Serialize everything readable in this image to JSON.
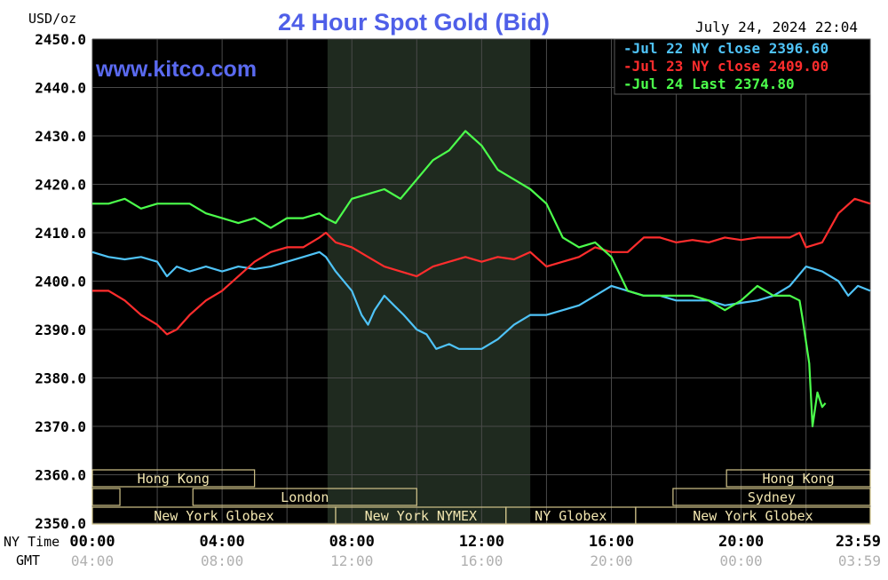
{
  "chart_data": {
    "type": "line",
    "title": "24 Hour Spot Gold (Bid)",
    "watermark": "www.kitco.com",
    "timestamp": "July 24, 2024 22:04",
    "ylabel": "USD/oz",
    "ylim": [
      2350,
      2450
    ],
    "grid": true,
    "legend_position": "top-right",
    "y_ticks": [
      "2450.0",
      "2440.0",
      "2430.0",
      "2420.0",
      "2410.0",
      "2400.0",
      "2390.0",
      "2380.0",
      "2370.0",
      "2360.0",
      "2350.0"
    ],
    "x_axis_label_ny": "NY Time",
    "x_axis_label_gmt": "GMT",
    "x_ticks_ny": [
      "00:00",
      "04:00",
      "08:00",
      "12:00",
      "16:00",
      "20:00",
      "23:59"
    ],
    "x_ticks_gmt": [
      "04:00",
      "08:00",
      "12:00",
      "16:00",
      "20:00",
      "00:00",
      "03:59"
    ],
    "highlight_band_hours": [
      7.25,
      13.5
    ],
    "series": [
      {
        "name": "Jul 22 NY close 2396.60",
        "color": "#4fc3f7",
        "points": [
          [
            0,
            2406
          ],
          [
            0.5,
            2405
          ],
          [
            1,
            2404.5
          ],
          [
            1.5,
            2405
          ],
          [
            2,
            2404
          ],
          [
            2.3,
            2401
          ],
          [
            2.6,
            2403
          ],
          [
            3,
            2402
          ],
          [
            3.5,
            2403
          ],
          [
            4,
            2402
          ],
          [
            4.5,
            2403
          ],
          [
            5,
            2402.5
          ],
          [
            5.5,
            2403
          ],
          [
            6,
            2404
          ],
          [
            6.5,
            2405
          ],
          [
            7,
            2406
          ],
          [
            7.2,
            2405
          ],
          [
            7.5,
            2402
          ],
          [
            8,
            2398
          ],
          [
            8.3,
            2393
          ],
          [
            8.5,
            2391
          ],
          [
            8.7,
            2394
          ],
          [
            9,
            2397
          ],
          [
            9.3,
            2395
          ],
          [
            9.6,
            2393
          ],
          [
            10,
            2390
          ],
          [
            10.3,
            2389
          ],
          [
            10.6,
            2386
          ],
          [
            11,
            2387
          ],
          [
            11.3,
            2386
          ],
          [
            11.7,
            2386
          ],
          [
            12,
            2386
          ],
          [
            12.5,
            2388
          ],
          [
            13,
            2391
          ],
          [
            13.5,
            2393
          ],
          [
            14,
            2393
          ],
          [
            14.5,
            2394
          ],
          [
            15,
            2395
          ],
          [
            15.5,
            2397
          ],
          [
            16,
            2399
          ],
          [
            16.5,
            2398
          ],
          [
            17,
            2397
          ],
          [
            17.5,
            2397
          ],
          [
            18,
            2396
          ],
          [
            18.5,
            2396
          ],
          [
            19,
            2396
          ],
          [
            19.5,
            2395
          ],
          [
            20,
            2395.5
          ],
          [
            20.5,
            2396
          ],
          [
            21,
            2397
          ],
          [
            21.5,
            2399
          ],
          [
            22,
            2403
          ],
          [
            22.5,
            2402
          ],
          [
            23,
            2400
          ],
          [
            23.3,
            2397
          ],
          [
            23.6,
            2399
          ],
          [
            23.98,
            2398
          ]
        ]
      },
      {
        "name": "Jul 23 NY close 2409.00",
        "color": "#ff2d2d",
        "points": [
          [
            0,
            2398
          ],
          [
            0.5,
            2398
          ],
          [
            1,
            2396
          ],
          [
            1.5,
            2393
          ],
          [
            2,
            2391
          ],
          [
            2.3,
            2389
          ],
          [
            2.6,
            2390
          ],
          [
            3,
            2393
          ],
          [
            3.5,
            2396
          ],
          [
            4,
            2398
          ],
          [
            4.5,
            2401
          ],
          [
            5,
            2404
          ],
          [
            5.5,
            2406
          ],
          [
            6,
            2407
          ],
          [
            6.5,
            2407
          ],
          [
            7,
            2409
          ],
          [
            7.2,
            2410
          ],
          [
            7.5,
            2408
          ],
          [
            8,
            2407
          ],
          [
            8.5,
            2405
          ],
          [
            9,
            2403
          ],
          [
            9.5,
            2402
          ],
          [
            10,
            2401
          ],
          [
            10.5,
            2403
          ],
          [
            11,
            2404
          ],
          [
            11.5,
            2405
          ],
          [
            12,
            2404
          ],
          [
            12.5,
            2405
          ],
          [
            13,
            2404.5
          ],
          [
            13.5,
            2406
          ],
          [
            14,
            2403
          ],
          [
            14.5,
            2404
          ],
          [
            15,
            2405
          ],
          [
            15.5,
            2407
          ],
          [
            16,
            2406
          ],
          [
            16.5,
            2406
          ],
          [
            17,
            2409
          ],
          [
            17.5,
            2409
          ],
          [
            18,
            2408
          ],
          [
            18.5,
            2408.5
          ],
          [
            19,
            2408
          ],
          [
            19.5,
            2409
          ],
          [
            20,
            2408.5
          ],
          [
            20.5,
            2409
          ],
          [
            21,
            2409
          ],
          [
            21.5,
            2409
          ],
          [
            21.8,
            2410
          ],
          [
            22,
            2407
          ],
          [
            22.5,
            2408
          ],
          [
            23,
            2414
          ],
          [
            23.5,
            2417
          ],
          [
            23.98,
            2416
          ]
        ]
      },
      {
        "name": "Jul 24 Last 2374.80",
        "color": "#4cff4c",
        "points": [
          [
            0,
            2416
          ],
          [
            0.5,
            2416
          ],
          [
            1,
            2417
          ],
          [
            1.5,
            2415
          ],
          [
            2,
            2416
          ],
          [
            2.5,
            2416
          ],
          [
            3,
            2416
          ],
          [
            3.5,
            2414
          ],
          [
            4,
            2413
          ],
          [
            4.5,
            2412
          ],
          [
            5,
            2413
          ],
          [
            5.5,
            2411
          ],
          [
            6,
            2413
          ],
          [
            6.5,
            2413
          ],
          [
            7,
            2414
          ],
          [
            7.2,
            2413
          ],
          [
            7.5,
            2412
          ],
          [
            8,
            2417
          ],
          [
            8.5,
            2418
          ],
          [
            9,
            2419
          ],
          [
            9.5,
            2417
          ],
          [
            10,
            2421
          ],
          [
            10.5,
            2425
          ],
          [
            11,
            2427
          ],
          [
            11.5,
            2431
          ],
          [
            12,
            2428
          ],
          [
            12.5,
            2423
          ],
          [
            13,
            2421
          ],
          [
            13.5,
            2419
          ],
          [
            14,
            2416
          ],
          [
            14.5,
            2409
          ],
          [
            15,
            2407
          ],
          [
            15.5,
            2408
          ],
          [
            16,
            2405
          ],
          [
            16.5,
            2398
          ],
          [
            17,
            2397
          ],
          [
            17.5,
            2397
          ],
          [
            18,
            2397
          ],
          [
            18.5,
            2397
          ],
          [
            19,
            2396
          ],
          [
            19.5,
            2394
          ],
          [
            20,
            2396
          ],
          [
            20.5,
            2399
          ],
          [
            21,
            2397
          ],
          [
            21.5,
            2397
          ],
          [
            21.8,
            2396
          ],
          [
            21.9,
            2392
          ],
          [
            22.1,
            2383
          ],
          [
            22.2,
            2370
          ],
          [
            22.35,
            2377
          ],
          [
            22.5,
            2374
          ],
          [
            22.6,
            2374.8
          ]
        ]
      }
    ],
    "sessions": [
      {
        "label": "Hong Kong",
        "start": 0,
        "end": 5.0,
        "row": 0
      },
      {
        "label": "",
        "start": 0,
        "end": 0.85,
        "row": 1
      },
      {
        "label": "London",
        "start": 3.1,
        "end": 10.0,
        "row": 1
      },
      {
        "label": "New York Globex",
        "start": 0,
        "end": 7.5,
        "row": 2
      },
      {
        "label": "New York NYMEX",
        "start": 7.5,
        "end": 12.75,
        "row": 2
      },
      {
        "label": "NY Globex",
        "start": 12.75,
        "end": 16.75,
        "row": 2
      },
      {
        "label": "Hong Kong",
        "start": 19.55,
        "end": 23.98,
        "row": 0
      },
      {
        "label": "Sydney",
        "start": 17.9,
        "end": 23.98,
        "row": 1
      },
      {
        "label": "New York Globex",
        "start": 16.75,
        "end": 23.98,
        "row": 2
      }
    ]
  }
}
